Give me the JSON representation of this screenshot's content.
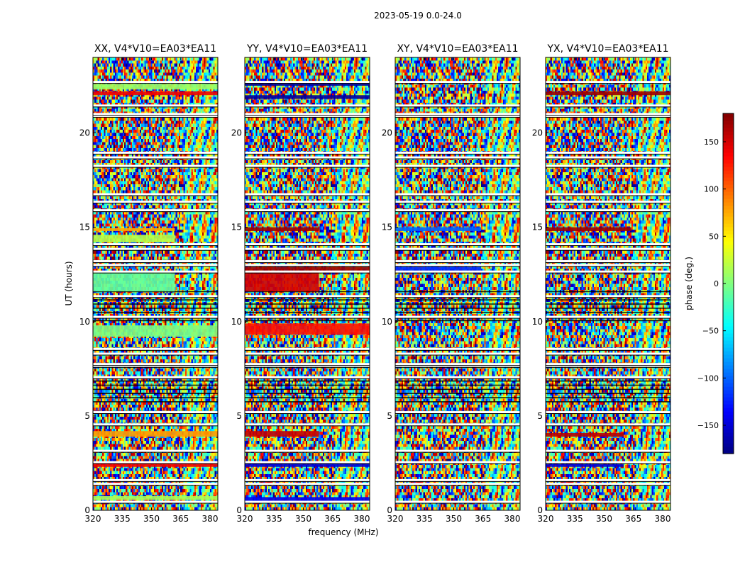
{
  "figure": {
    "suptitle": "2023-05-19 0.0-24.0",
    "colors": {
      "frame": "#000000",
      "background": "#ffffff"
    }
  },
  "chart_data": {
    "type": "heatmap",
    "colormap": "jet",
    "title": "2023-05-19 0.0-24.0",
    "xlabel": "frequency (MHz)",
    "ylabel": "UT (hours)",
    "xlim": [
      320,
      384
    ],
    "ylim": [
      0,
      24
    ],
    "x_ticks": [
      320,
      335,
      350,
      365,
      380
    ],
    "y_ticks": [
      0,
      5,
      10,
      15,
      20
    ],
    "value_range": [
      -180,
      180
    ],
    "panels": [
      {
        "title": "XX, V4*V10=EA03*EA11",
        "coherent_bands": [
          {
            "ut": [
              0.55,
              0.75
            ],
            "phase": 15,
            "extent_mhz": [
              320,
              384
            ]
          },
          {
            "ut": [
              2.3,
              2.5
            ],
            "phase": 140,
            "extent_mhz": [
              320,
              384
            ]
          },
          {
            "ut": [
              3.9,
              4.2
            ],
            "phase": 80,
            "extent_mhz": [
              320,
              384
            ]
          },
          {
            "ut": [
              9.2,
              9.8
            ],
            "phase": 0,
            "extent_mhz": [
              320,
              384
            ]
          },
          {
            "ut": [
              11.6,
              12.6
            ],
            "phase": -10,
            "extent_mhz": [
              320,
              362
            ]
          },
          {
            "ut": [
              14.2,
              14.6
            ],
            "phase": 20,
            "extent_mhz": [
              320,
              362
            ]
          },
          {
            "ut": [
              14.8,
              14.95
            ],
            "phase": 75,
            "extent_mhz": [
              320,
              362
            ]
          },
          {
            "ut": [
              22.0,
              22.2
            ],
            "phase": 140,
            "extent_mhz": [
              320,
              384
            ]
          },
          {
            "ut": [
              22.3,
              22.6
            ],
            "phase": 10,
            "extent_mhz": [
              320,
              384
            ]
          }
        ]
      },
      {
        "title": "YY, V4*V10=EA03*EA11",
        "coherent_bands": [
          {
            "ut": [
              0.5,
              0.7
            ],
            "phase": -140,
            "extent_mhz": [
              320,
              384
            ]
          },
          {
            "ut": [
              2.3,
              2.5
            ],
            "phase": -150,
            "extent_mhz": [
              320,
              384
            ]
          },
          {
            "ut": [
              3.9,
              4.2
            ],
            "phase": 155,
            "extent_mhz": [
              320,
              358
            ]
          },
          {
            "ut": [
              9.3,
              9.9
            ],
            "phase": 130,
            "extent_mhz": [
              320,
              384
            ]
          },
          {
            "ut": [
              11.6,
              12.6
            ],
            "phase": 150,
            "extent_mhz": [
              320,
              358
            ]
          },
          {
            "ut": [
              12.7,
              12.9
            ],
            "phase": 170,
            "extent_mhz": [
              320,
              384
            ]
          },
          {
            "ut": [
              14.8,
              15.0
            ],
            "phase": 170,
            "extent_mhz": [
              320,
              358
            ]
          },
          {
            "ut": [
              21.8,
              22.0
            ],
            "phase": -170,
            "extent_mhz": [
              320,
              384
            ]
          },
          {
            "ut": [
              22.5,
              22.7
            ],
            "phase": -170,
            "extent_mhz": [
              320,
              384
            ]
          }
        ]
      },
      {
        "title": "XY, V4*V10=EA03*EA11",
        "coherent_bands": [
          {
            "ut": [
              12.7,
              12.9
            ],
            "phase": -120,
            "extent_mhz": [
              320,
              364
            ]
          },
          {
            "ut": [
              14.8,
              15.0
            ],
            "phase": -100,
            "extent_mhz": [
              320,
              364
            ]
          }
        ]
      },
      {
        "title": "YX, V4*V10=EA03*EA11",
        "coherent_bands": [
          {
            "ut": [
              2.3,
              2.45
            ],
            "phase": -150,
            "extent_mhz": [
              320,
              360
            ]
          },
          {
            "ut": [
              3.9,
              4.1
            ],
            "phase": 160,
            "extent_mhz": [
              320,
              360
            ]
          },
          {
            "ut": [
              14.8,
              15.0
            ],
            "phase": 170,
            "extent_mhz": [
              320,
              364
            ]
          },
          {
            "ut": [
              22.0,
              22.2
            ],
            "phase": 170,
            "extent_mhz": [
              320,
              384
            ]
          }
        ]
      }
    ],
    "flagged_ut": [
      0.45,
      1.4,
      1.6,
      2.55,
      3.15,
      4.55,
      5.2,
      7.05,
      7.65,
      7.75,
      8.3,
      8.55,
      10.25,
      11.35,
      12.65,
      13.0,
      13.2,
      13.85,
      14.1,
      15.9,
      16.35,
      16.75,
      18.25,
      18.7,
      18.95,
      20.9,
      21.0,
      21.45,
      22.7
    ],
    "dense_blocks_ut": [
      [
        5.7,
        6.9
      ],
      [
        10.0,
        11.6
      ]
    ],
    "colorbar": {
      "label": "phase (deg.)",
      "range": [
        -180,
        180
      ],
      "ticks": [
        -150,
        -100,
        -50,
        0,
        50,
        100,
        150
      ],
      "tick_labels": [
        "−150",
        "−100",
        "−50",
        "0",
        "50",
        "100",
        "150"
      ]
    }
  }
}
